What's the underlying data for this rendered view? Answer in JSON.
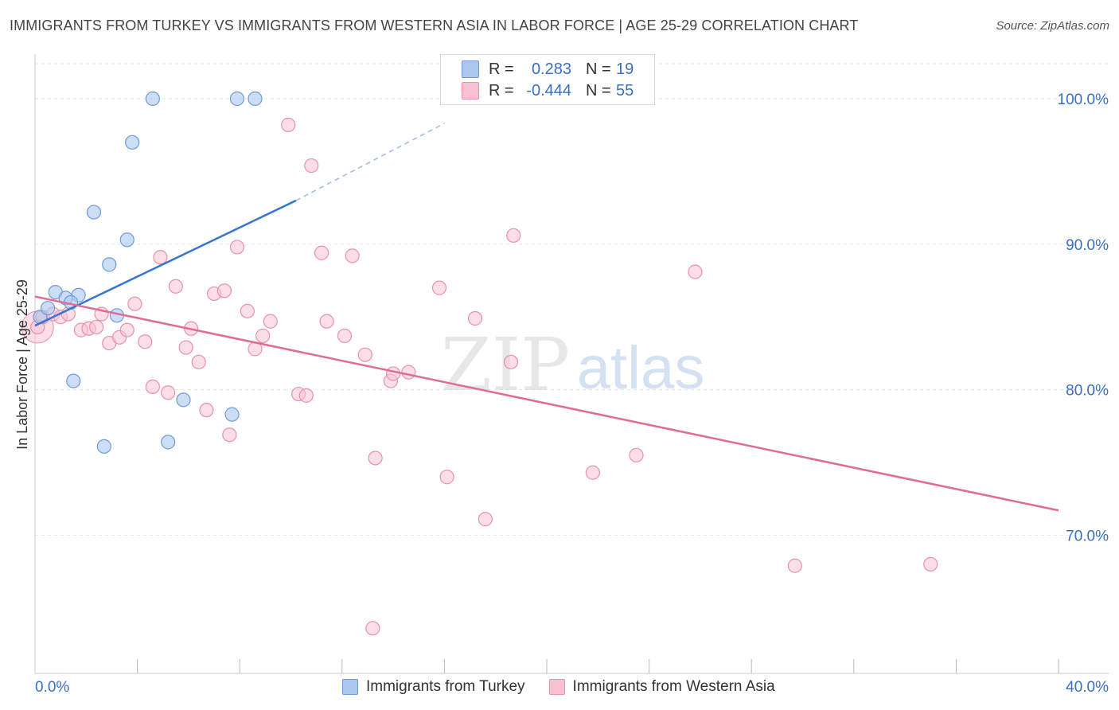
{
  "title": "IMMIGRANTS FROM TURKEY VS IMMIGRANTS FROM WESTERN ASIA IN LABOR FORCE | AGE 25-29 CORRELATION CHART",
  "source": "Source: ZipAtlas.com",
  "watermark": {
    "zip": "ZIP",
    "atlas": "atlas"
  },
  "stats": {
    "r_label": "R =",
    "n_label": "N =",
    "series1": {
      "r": "0.283",
      "n": "19"
    },
    "series2": {
      "r": "-0.444",
      "n": "55"
    }
  },
  "legend": {
    "series1": "Immigrants from Turkey",
    "series2": "Immigrants from Western Asia"
  },
  "colors": {
    "series1_fill": "#aac8ee",
    "series1_stroke": "#6f9bd8",
    "series1_line": "#3575d0",
    "series2_fill": "#f7c2d2",
    "series2_stroke": "#e891ad",
    "series2_line": "#e06b97",
    "tick_label": "#3a6fc4",
    "grid": "#e6e6e6"
  },
  "chart_data": {
    "type": "scatter",
    "xlabel": "",
    "ylabel": "In Labor Force | Age 25-29",
    "xlim": [
      0,
      40
    ],
    "ylim": [
      60.5,
      103.5
    ],
    "x_tick_labels": [
      "0.0%",
      "40.0%"
    ],
    "y_ticks": [
      70,
      80,
      90,
      100
    ],
    "y_tick_labels": [
      "70.0%",
      "80.0%",
      "90.0%",
      "100.0%"
    ],
    "grid": "horizontal dashed",
    "series": [
      {
        "name": "Immigrants from Turkey",
        "points": [
          [
            0.2,
            85.0
          ],
          [
            0.5,
            85.6
          ],
          [
            0.8,
            86.7
          ],
          [
            1.2,
            86.3
          ],
          [
            1.7,
            86.5
          ],
          [
            1.5,
            80.6
          ],
          [
            2.3,
            92.2
          ],
          [
            2.9,
            88.6
          ],
          [
            3.6,
            90.3
          ],
          [
            3.8,
            97.0
          ],
          [
            3.2,
            85.1
          ],
          [
            2.7,
            76.1
          ],
          [
            4.6,
            100.0
          ],
          [
            5.2,
            76.4
          ],
          [
            5.8,
            79.3
          ],
          [
            7.7,
            78.3
          ],
          [
            7.9,
            100.0
          ],
          [
            8.6,
            100.0
          ],
          [
            1.4,
            86.0
          ]
        ],
        "trend": {
          "x": [
            0.0,
            10.2
          ],
          "y": [
            84.4,
            93.0
          ],
          "dashed_to": [
            16.0,
            98.3
          ]
        }
      },
      {
        "name": "Immigrants from Western Asia",
        "points": [
          [
            0.1,
            84.3
          ],
          [
            0.3,
            85.0
          ],
          [
            0.7,
            85.2
          ],
          [
            1.0,
            85.0
          ],
          [
            1.3,
            85.2
          ],
          [
            1.8,
            84.1
          ],
          [
            2.1,
            84.2
          ],
          [
            2.4,
            84.3
          ],
          [
            2.6,
            85.2
          ],
          [
            2.9,
            83.2
          ],
          [
            3.3,
            83.6
          ],
          [
            3.6,
            84.1
          ],
          [
            3.9,
            85.9
          ],
          [
            4.3,
            83.3
          ],
          [
            4.6,
            80.2
          ],
          [
            4.9,
            89.1
          ],
          [
            5.2,
            79.8
          ],
          [
            5.5,
            87.1
          ],
          [
            5.9,
            82.9
          ],
          [
            6.1,
            84.2
          ],
          [
            6.4,
            81.9
          ],
          [
            6.7,
            78.6
          ],
          [
            7.0,
            86.6
          ],
          [
            7.4,
            86.8
          ],
          [
            7.6,
            76.9
          ],
          [
            7.9,
            89.8
          ],
          [
            8.3,
            85.4
          ],
          [
            8.6,
            82.8
          ],
          [
            8.9,
            83.7
          ],
          [
            9.2,
            84.7
          ],
          [
            9.9,
            98.2
          ],
          [
            10.3,
            79.7
          ],
          [
            10.6,
            79.6
          ],
          [
            10.8,
            95.4
          ],
          [
            11.2,
            89.4
          ],
          [
            11.4,
            84.7
          ],
          [
            12.1,
            83.7
          ],
          [
            12.4,
            89.2
          ],
          [
            12.9,
            82.4
          ],
          [
            13.3,
            75.3
          ],
          [
            13.9,
            80.6
          ],
          [
            14.0,
            81.1
          ],
          [
            14.6,
            81.2
          ],
          [
            15.8,
            87.0
          ],
          [
            16.1,
            74.0
          ],
          [
            17.2,
            84.9
          ],
          [
            17.6,
            71.1
          ],
          [
            18.6,
            81.9
          ],
          [
            18.7,
            90.6
          ],
          [
            21.8,
            74.3
          ],
          [
            23.5,
            75.5
          ],
          [
            25.8,
            88.1
          ],
          [
            29.7,
            67.9
          ],
          [
            35.0,
            68.0
          ],
          [
            13.2,
            63.6
          ]
        ],
        "trend": {
          "x": [
            0.0,
            40.0
          ],
          "y": [
            86.4,
            71.7
          ]
        }
      }
    ]
  }
}
